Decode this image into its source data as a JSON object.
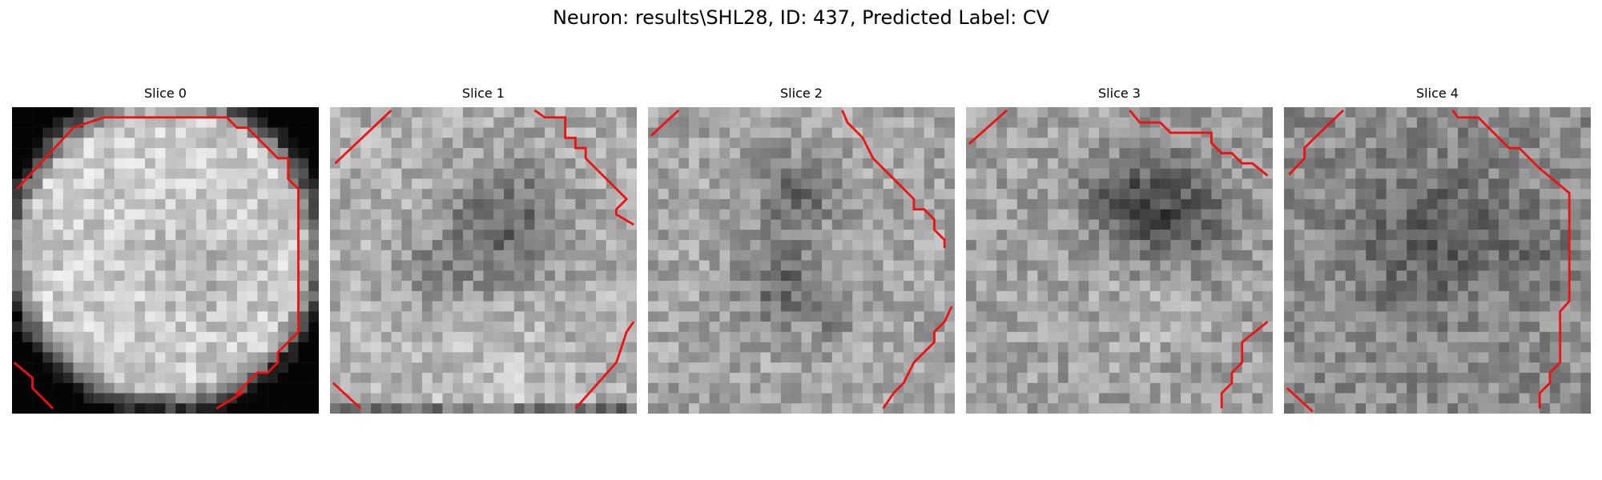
{
  "figure": {
    "title": "Neuron: results\\SHL28, ID: 437, Predicted Label: CV",
    "colormap": "gray",
    "contour_color": "#ee1111"
  },
  "panels": [
    {
      "title": "Slice 0"
    },
    {
      "title": "Slice 1"
    },
    {
      "title": "Slice 2"
    },
    {
      "title": "Slice 3"
    },
    {
      "title": "Slice 4"
    }
  ]
}
